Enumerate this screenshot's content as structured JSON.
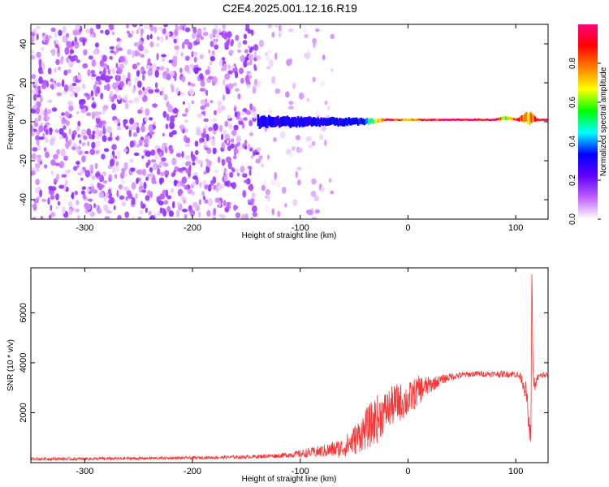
{
  "title": "C2E4.2025.001.12.16.R19",
  "chart_data": [
    {
      "type": "heatmap",
      "panel": "spectrogram",
      "xlabel": "Height of straight line (km)",
      "ylabel": "Frequency (Hz)",
      "xlim": [
        -350,
        130
      ],
      "ylim": [
        -50,
        50
      ],
      "x_ticks": [
        -300,
        -200,
        -100,
        0,
        100
      ],
      "y_ticks": [
        -40,
        -20,
        0,
        20,
        40
      ],
      "colorbar": {
        "label": "Normalized spectral amplitude",
        "range": [
          0,
          1
        ],
        "ticks": [
          "0.0",
          "0.2",
          "0.4",
          "0.6",
          "0.8"
        ],
        "colors": [
          "#ffffff",
          "#c060ff",
          "#6000ff",
          "#0000ff",
          "#00ffff",
          "#00ff00",
          "#ffff00",
          "#ff8000",
          "#ff0000",
          "#ff0080"
        ]
      },
      "noise_region_x": [
        -350,
        -140
      ],
      "sparse_region_x": [
        -140,
        -70
      ],
      "signal_track": [
        {
          "x": -140,
          "freq": 0,
          "spread_hz": 6,
          "amplitude": 0.3
        },
        {
          "x": -120,
          "freq": 0,
          "spread_hz": 5,
          "amplitude": 0.3
        },
        {
          "x": -100,
          "freq": 0,
          "spread_hz": 5,
          "amplitude": 0.3
        },
        {
          "x": -80,
          "freq": 0,
          "spread_hz": 4,
          "amplitude": 0.3
        },
        {
          "x": -60,
          "freq": 0,
          "spread_hz": 4,
          "amplitude": 0.3
        },
        {
          "x": -40,
          "freq": 0,
          "spread_hz": 3,
          "amplitude": 0.35
        },
        {
          "x": -20,
          "freq": 1,
          "spread_hz": 1,
          "amplitude": 0.95
        },
        {
          "x": 0,
          "freq": 1,
          "spread_hz": 1,
          "amplitude": 0.7
        },
        {
          "x": 20,
          "freq": 1,
          "spread_hz": 1,
          "amplitude": 0.9
        },
        {
          "x": 40,
          "freq": 1,
          "spread_hz": 1,
          "amplitude": 0.95
        },
        {
          "x": 60,
          "freq": 1,
          "spread_hz": 1,
          "amplitude": 0.95
        },
        {
          "x": 80,
          "freq": 1,
          "spread_hz": 1,
          "amplitude": 0.95
        },
        {
          "x": 90,
          "freq": 2,
          "spread_hz": 2,
          "amplitude": 0.6
        },
        {
          "x": 100,
          "freq": 1,
          "spread_hz": 1,
          "amplitude": 0.9
        },
        {
          "x": 112,
          "freq": 2,
          "spread_hz": 6,
          "amplitude": 0.7
        },
        {
          "x": 120,
          "freq": 1,
          "spread_hz": 1,
          "amplitude": 0.95
        },
        {
          "x": 130,
          "freq": 1,
          "spread_hz": 1,
          "amplitude": 0.95
        }
      ]
    },
    {
      "type": "line",
      "panel": "snr",
      "xlabel": "Height of straight line (km)",
      "ylabel": "SNR (10 * v/v)",
      "xlim": [
        -350,
        130
      ],
      "ylim": [
        0,
        7800
      ],
      "x_ticks": [
        -300,
        -200,
        -100,
        0,
        100
      ],
      "y_ticks": [
        2000,
        4000,
        6000
      ],
      "line_color": "#ff3333",
      "series": [
        {
          "x": [
            -350,
            -300,
            -250,
            -200,
            -150,
            -120,
            -100,
            -80,
            -60,
            -50,
            -40,
            -30,
            -20,
            -10,
            0,
            10,
            20,
            30,
            40,
            60,
            80,
            100,
            105,
            110,
            112,
            114,
            115,
            116,
            118,
            120,
            125,
            130
          ],
          "y": [
            150,
            150,
            170,
            190,
            230,
            280,
            350,
            450,
            600,
            900,
            1300,
            1700,
            2100,
            2400,
            2500,
            2900,
            3100,
            3300,
            3450,
            3550,
            3550,
            3550,
            3400,
            2800,
            1500,
            1000,
            7800,
            3500,
            3000,
            3400,
            3500,
            3500
          ],
          "noise": [
            60,
            60,
            60,
            60,
            70,
            90,
            150,
            250,
            400,
            600,
            800,
            1000,
            800,
            800,
            700,
            600,
            350,
            200,
            150,
            120,
            120,
            150,
            200,
            400,
            500,
            300,
            0,
            300,
            200,
            150,
            150,
            150
          ]
        }
      ]
    }
  ]
}
